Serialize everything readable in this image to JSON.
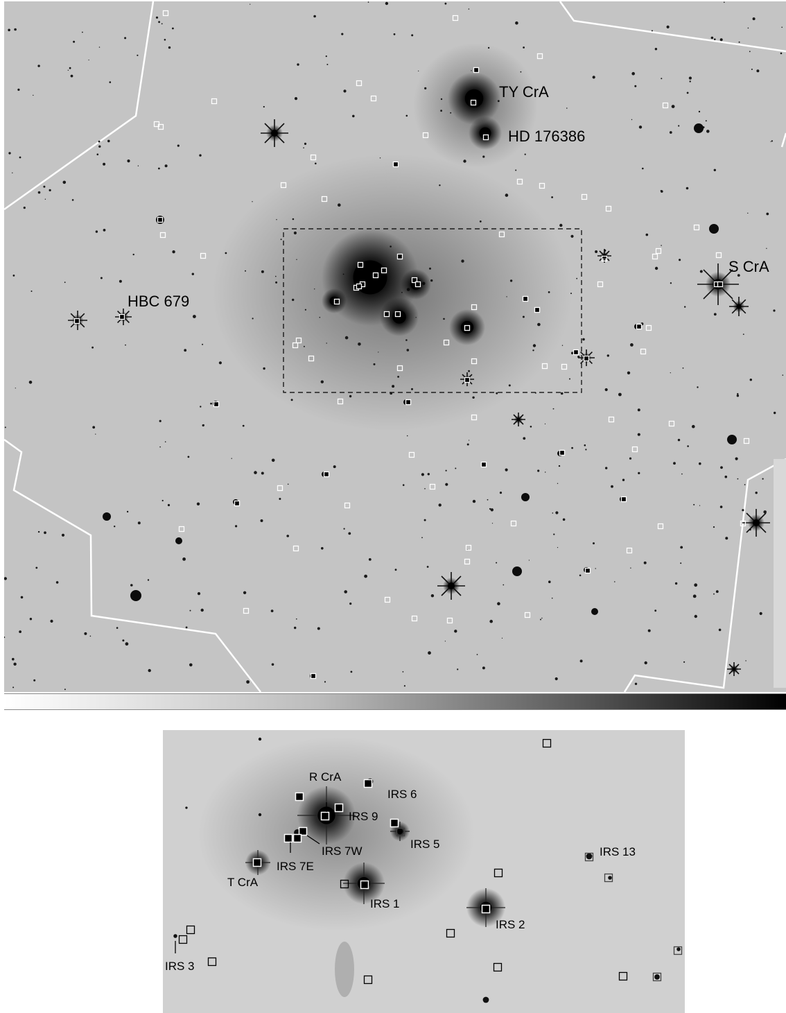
{
  "colors": {
    "sky_main": "#c4c4c4",
    "sky_inset": "#d0d0d0",
    "star": "#111111",
    "boundary": "#ffffff",
    "marker_light": "#ffffff",
    "marker_dark": "#000000"
  },
  "colorbar": {
    "from": "#ffffff",
    "to": "#000000"
  },
  "main_labels": [
    {
      "id": "ty-cra",
      "text": "TY CrA"
    },
    {
      "id": "hd-176386",
      "text": "HD 176386"
    },
    {
      "id": "hbc-679",
      "text": "HBC 679"
    },
    {
      "id": "s-cra",
      "text": "S CrA"
    }
  ],
  "inset_labels": [
    {
      "id": "r-cra",
      "text": "R CrA"
    },
    {
      "id": "irs-6",
      "text": "IRS 6"
    },
    {
      "id": "irs-9",
      "text": "IRS 9"
    },
    {
      "id": "irs-5",
      "text": "IRS 5"
    },
    {
      "id": "irs-7w",
      "text": "IRS 7W"
    },
    {
      "id": "irs-7e",
      "text": "IRS 7E"
    },
    {
      "id": "t-cra",
      "text": "T CrA"
    },
    {
      "id": "irs-1",
      "text": "IRS 1"
    },
    {
      "id": "irs-2",
      "text": "IRS 2"
    },
    {
      "id": "irs-13",
      "text": "IRS 13"
    },
    {
      "id": "irs-3",
      "text": "IRS 3"
    }
  ]
}
